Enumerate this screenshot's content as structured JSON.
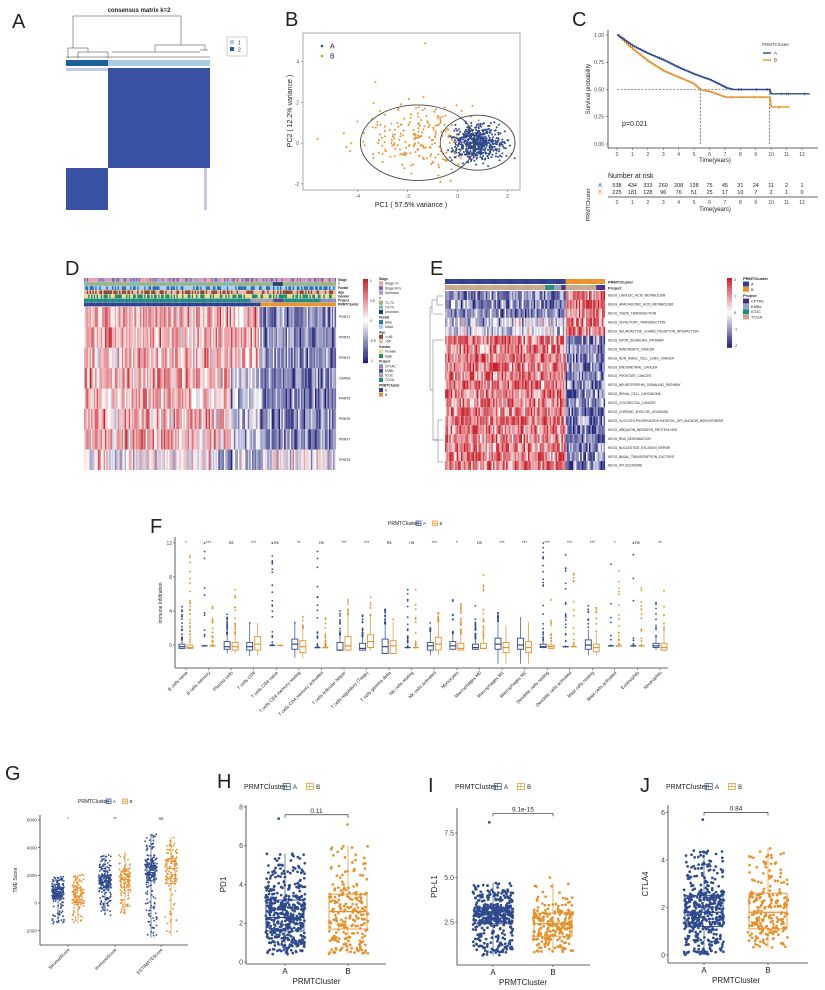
{
  "colors": {
    "cluster_A": "#2f4a8c",
    "cluster_B": "#e3922f",
    "heat_high": "#c8202c",
    "heat_low": "#1c1f78",
    "consensus": "#3a52a3",
    "consensus_light": "#a9cde3",
    "consensus_dark": "#1f5f99"
  },
  "chart_data": [
    {
      "panel": "A",
      "type": "heatmap",
      "title": "consensus matrix k=2",
      "legend": [
        "1",
        "2"
      ]
    },
    {
      "panel": "B",
      "type": "scatter",
      "xlabel": "PC1 ( 57.5% variance )",
      "ylabel": "PC2 ( 12.2% variance )",
      "xticks": [
        "-4",
        "-2",
        "0",
        "2"
      ],
      "yticks": [
        "-2",
        "0",
        "2",
        "4"
      ],
      "xlim": [
        -6.2,
        2.5
      ],
      "ylim": [
        -2.3,
        5.4
      ],
      "legend": [
        "A",
        "B"
      ],
      "legend_placement": "top-left",
      "ellipses": true
    },
    {
      "panel": "C",
      "type": "line",
      "xlabel": "Time(years)",
      "ylabel": "Survival probability",
      "xticks": [
        "0",
        "1",
        "2",
        "3",
        "4",
        "5",
        "6",
        "7",
        "8",
        "9",
        "10",
        "11",
        "12"
      ],
      "yticks": [
        "0.00",
        "0.25",
        "0.50",
        "0.75",
        "1.00"
      ],
      "legend_title": "PRMTCluster",
      "legend": [
        "A",
        "B"
      ],
      "legend_placement": "top-right",
      "pvalue": "p=0.021",
      "series": [
        {
          "name": "A",
          "points": [
            [
              0,
              1
            ],
            [
              1,
              0.9
            ],
            [
              2,
              0.83
            ],
            [
              3,
              0.77
            ],
            [
              4,
              0.7
            ],
            [
              5,
              0.64
            ],
            [
              6,
              0.59
            ],
            [
              7,
              0.52
            ],
            [
              7.5,
              0.5
            ],
            [
              9.9,
              0.5
            ],
            [
              10,
              0.46
            ],
            [
              12.5,
              0.46
            ]
          ]
        },
        {
          "name": "B",
          "points": [
            [
              0,
              1
            ],
            [
              1,
              0.87
            ],
            [
              2,
              0.76
            ],
            [
              3,
              0.67
            ],
            [
              4,
              0.61
            ],
            [
              5,
              0.55
            ],
            [
              5.4,
              0.5
            ],
            [
              6,
              0.48
            ],
            [
              7,
              0.43
            ],
            [
              9.9,
              0.43
            ],
            [
              10,
              0.34
            ],
            [
              11.2,
              0.34
            ]
          ]
        }
      ],
      "median_survival": [
        5.4,
        9.9
      ],
      "risk_table": {
        "title": "Number at risk",
        "ylabel": "PRMTCluster",
        "xlabel": "Time(years)",
        "rows": [
          {
            "name": "A",
            "values": [
              "538",
              "434",
              "333",
              "269",
              "208",
              "138",
              "75",
              "45",
              "31",
              "24",
              "11",
              "2",
              "1"
            ]
          },
          {
            "name": "B",
            "values": [
              "225",
              "181",
              "128",
              "96",
              "76",
              "51",
              "25",
              "17",
              "10",
              "7",
              "2",
              "1",
              "0"
            ]
          }
        ]
      }
    },
    {
      "panel": "D",
      "type": "heatmap",
      "annotation_tracks": [
        "Stage",
        "T",
        "Fustat",
        "Age",
        "Gender",
        "Project",
        "PRMTCluster"
      ],
      "rows": [
        "PRMT1",
        "PRMT2",
        "PRMT3",
        "CARM1",
        "PRMT5",
        "PRMT6",
        "PRMT7",
        "PRMT8"
      ],
      "color_scale": [
        "1",
        "0.5",
        "0",
        "-0.5",
        "-1"
      ],
      "legend": [
        {
          "title": "Stage",
          "items": [
            "Stage I-II",
            "Stage III-IV",
            "Unknown"
          ],
          "colors": [
            "#e8a0a8",
            "#7a6bb0",
            "#a99bd0"
          ]
        },
        {
          "title": "T",
          "items": [
            "T1-T2",
            "T3-T4",
            "Unknown"
          ],
          "colors": [
            "#9fb07a",
            "#7fb8b0",
            "#1f3b6b"
          ]
        },
        {
          "title": "Fustat",
          "items": [
            "Alive",
            "Dead"
          ],
          "colors": [
            "#2d6fb3",
            "#a8cde8"
          ]
        },
        {
          "title": "Age",
          "items": [
            "<=65",
            ">65"
          ],
          "colors": [
            "#8a4a2e",
            "#e8b8a0"
          ]
        },
        {
          "title": "Gender",
          "items": [
            "Female",
            "Male"
          ],
          "colors": [
            "#f0d890",
            "#1f8a70"
          ]
        },
        {
          "title": "Project",
          "items": [
            "CPTAC",
            "EMBL",
            "ICGC",
            "TCGA"
          ],
          "colors": [
            "#7e8fc4",
            "#54408f",
            "#a0a0a0",
            "#1f8a80"
          ]
        },
        {
          "title": "PRMTCluster",
          "items": [
            "A",
            "B"
          ],
          "colors": [
            "#2c3e8c",
            "#e8922a"
          ]
        }
      ]
    },
    {
      "panel": "E",
      "type": "heatmap",
      "annotation_tracks": [
        "PRMTCluster",
        "Project"
      ],
      "rows": [
        "KEGG_LINOLEIC_ACID_METABOLISM",
        "KEGG_ARACHIDONIC_ACID_METABOLISM",
        "KEGG_TASTE_TRANSDUCTION",
        "KEGG_OLFACTORY_TRANSDUCTION",
        "KEGG_NEUROACTIVE_LIGAND_RECEPTOR_INTERACTION",
        "KEGG_MTOR_SIGNALING_PATHWAY",
        "KEGG_PANCREATIC_CANCER",
        "KEGG_NON_SMALL_CELL_LUNG_CANCER",
        "KEGG_ENDOMETRIAL_CANCER",
        "KEGG_PROSTATE_CANCER",
        "KEGG_NEUROTROPHIN_SIGNALING_PATHWAY",
        "KEGG_RENAL_CELL_CARCINOMA",
        "KEGG_COLORECTAL_CANCER",
        "KEGG_CHRONIC_MYELOID_LEUKEMIA",
        "KEGG_GLYCOSYLPHOSPHATIDYLINOSITOL_GPI_ANCHOR_BIOSYNTHESIS",
        "KEGG_UBIQUITIN_MEDIATED_PROTEOLYSIS",
        "KEGG_RNA_DEGRADATION",
        "KEGG_NUCLEOTIDE_EXCISION_REPAIR",
        "KEGG_BASAL_TRANSCRIPTION_FACTORS",
        "KEGG_SPLICEOSOME"
      ],
      "color_scale": [
        "2",
        "1",
        "0",
        "-1",
        "-2"
      ],
      "legend": [
        {
          "title": "PRMTCluster",
          "items": [
            "A",
            "B"
          ],
          "colors": [
            "#2c3e8c",
            "#e8922a"
          ]
        },
        {
          "title": "Project",
          "items": [
            "CPTAC",
            "EMBL",
            "ICGC",
            "TCGA"
          ],
          "colors": [
            "#4a2a7a",
            "#9aa0c8",
            "#1f8a80",
            "#c8a88a"
          ]
        }
      ]
    },
    {
      "panel": "F",
      "type": "box",
      "ylabel": "Immune Infiltration",
      "yticks": [
        "0",
        "4",
        "8",
        "12"
      ],
      "ylim": [
        -2.7,
        12.5
      ],
      "legend_title": "PRMTCluster",
      "legend": [
        "A",
        "B"
      ],
      "legend_placement": "top",
      "categories": [
        "B cells naive",
        "B cells memory",
        "Plasma cells",
        "T cells CD8",
        "T cells CD4 naive",
        "T cells CD4 memory resting",
        "T cells CD4 memory activated",
        "T cells follicular helper",
        "T cells regulatory (Tregs)",
        "T cells gamma delta",
        "NK cells resting",
        "NK cells activated",
        "Monocytes",
        "Macrophages M0",
        "Macrophages M1",
        "Macrophages M2",
        "Dendritic cells resting",
        "Dendritic cells activated",
        "Mast cells resting",
        "Mast cells activated",
        "Eosinophils",
        "Neutrophils"
      ],
      "significance": [
        "*",
        "***",
        "ns",
        "***",
        "ns",
        "**",
        "ns",
        "***",
        "***",
        "ns",
        "ns",
        "***",
        "*",
        "ns",
        "***",
        "***",
        "***",
        "***",
        "***",
        "*",
        "ns",
        "**"
      ],
      "series": [
        {
          "name": "A",
          "box": [
            [
              -0.5,
              -0.4,
              -0.2,
              0.1,
              0.6
            ],
            [
              -0.1,
              -0.1,
              -0.1,
              -0.1,
              -0.1
            ],
            [
              -1,
              -0.5,
              -0.2,
              0.4,
              1.3
            ],
            [
              -1.3,
              -0.6,
              -0.2,
              0.3,
              2.5
            ],
            [
              -0.05,
              -0.05,
              -0.05,
              -0.05,
              -0.05
            ],
            [
              -1.5,
              -0.5,
              0.1,
              0.7,
              2.5
            ],
            [
              -0.3,
              -0.3,
              -0.3,
              -0.3,
              -0.3
            ],
            [
              -0.7,
              -0.6,
              -0.6,
              0.3,
              1.2
            ],
            [
              -0.7,
              -0.6,
              -0.4,
              0.2,
              1
            ],
            [
              -1,
              -1,
              -0.2,
              0.7,
              2.5
            ],
            [
              -0.3,
              -0.3,
              -0.3,
              -0.3,
              -0.3
            ],
            [
              -1.2,
              -0.6,
              -0.1,
              0.3,
              1.6
            ],
            [
              -0.6,
              -0.5,
              -0.1,
              0.4,
              1.3
            ],
            [
              -0.6,
              -0.5,
              -0.3,
              0.1,
              0.7
            ],
            [
              -2.2,
              -0.5,
              0.1,
              0.8,
              2.8
            ],
            [
              -2.2,
              -0.5,
              0,
              0.8,
              3.3
            ],
            [
              -0.4,
              -0.3,
              -0.2,
              0.1,
              0.5
            ],
            [
              -0.2,
              -0.2,
              -0.2,
              -0.2,
              -0.2
            ],
            [
              -1.2,
              -0.5,
              0,
              0.6,
              1.8
            ],
            [
              -0.1,
              -0.1,
              -0.1,
              -0.1,
              -0.1
            ],
            [
              -0.1,
              -0.1,
              -0.1,
              -0.1,
              -0.1
            ],
            [
              -0.6,
              -0.3,
              -0.1,
              0.2,
              1
            ]
          ],
          "max_outlier": [
            4.5,
            12,
            3.6,
            2.6,
            12,
            2.6,
            11,
            4,
            3.5,
            4.2,
            6.5,
            2.6,
            5.3,
            4.6,
            3.8,
            3.3,
            12,
            10.6,
            4.6,
            9.5,
            12,
            5
          ]
        },
        {
          "name": "B",
          "box": [
            [
              -0.5,
              -0.4,
              -0.3,
              0,
              0.4
            ],
            [
              -0.1,
              -0.1,
              -0.1,
              -0.1,
              -0.1
            ],
            [
              -1,
              -0.6,
              -0.2,
              0.3,
              1.3
            ],
            [
              -1.2,
              -0.6,
              0.1,
              1,
              2.6
            ],
            [
              -0.05,
              -0.05,
              -0.05,
              -0.05,
              -0.05
            ],
            [
              -1.5,
              -0.9,
              -0.2,
              0.5,
              2
            ],
            [
              -0.3,
              -0.3,
              -0.3,
              -0.3,
              -0.3
            ],
            [
              -0.7,
              -0.6,
              -0.1,
              1,
              3.6
            ],
            [
              -0.6,
              -0.3,
              0.4,
              1.2,
              3.5
            ],
            [
              -1,
              -1,
              -0.1,
              0.5,
              2.7
            ],
            [
              -0.3,
              -0.3,
              -0.3,
              -0.3,
              -0.3
            ],
            [
              -1.2,
              -0.6,
              0.1,
              0.9,
              2.8
            ],
            [
              -0.6,
              -0.6,
              -0.4,
              0.2,
              1.2
            ],
            [
              -0.5,
              -0.4,
              -0.4,
              0.2,
              0.8
            ],
            [
              -2.2,
              -0.9,
              -0.3,
              0.3,
              2.3
            ],
            [
              -2.2,
              -0.9,
              -0.3,
              0.4,
              2.7
            ],
            [
              -0.4,
              -0.4,
              -0.2,
              0,
              0.5
            ],
            [
              -0.2,
              -0.2,
              -0.2,
              -0.2,
              -0.2
            ],
            [
              -1.2,
              -0.8,
              -0.3,
              0.1,
              1.4
            ],
            [
              -0.1,
              -0.1,
              -0.1,
              -0.1,
              -0.1
            ],
            [
              -0.1,
              -0.1,
              -0.1,
              -0.1,
              -0.1
            ],
            [
              -0.7,
              -0.6,
              -0.3,
              0.2,
              1.8
            ]
          ],
          "max_outlier": [
            10.5,
            4.5,
            6.5,
            2.6,
            -0.05,
            3.3,
            3.2,
            5.3,
            5.6,
            3,
            6.5,
            3.8,
            4.8,
            8.2,
            2.3,
            2.7,
            5.3,
            8.4,
            4.4,
            8.7,
            6.7,
            6.4
          ]
        }
      ]
    },
    {
      "panel": "G",
      "type": "box",
      "ylabel": "TME Score",
      "yticks": [
        "-2000",
        "0",
        "2000",
        "4000",
        "6000"
      ],
      "ylim": [
        -2930,
        6360
      ],
      "legend_title": "PRMTCluster",
      "legend": [
        "A",
        "B"
      ],
      "categories": [
        "StromalScore",
        "ImmuneScore",
        "ESTIMATEScore"
      ],
      "significance": [
        "*",
        "**",
        "ns"
      ],
      "series": [
        {
          "name": "A",
          "box": [
            [
              -1500,
              300,
              700,
              1000,
              1900
            ],
            [
              -900,
              1000,
              1500,
              2000,
              3500
            ],
            [
              -2500,
              1600,
              2200,
              2900,
              5000
            ]
          ]
        },
        {
          "name": "B",
          "box": [
            [
              -1500,
              0,
              500,
              1000,
              2100
            ],
            [
              -800,
              1100,
              1700,
              2300,
              3700
            ],
            [
              -2400,
              1400,
              2500,
              3200,
              4800
            ]
          ]
        }
      ]
    },
    {
      "panel": "H",
      "type": "box",
      "ylabel": "PD1",
      "xlabel": "PRMTCluster",
      "yticks": [
        "0",
        "2",
        "4",
        "6",
        "8"
      ],
      "ylim": [
        0,
        8
      ],
      "legend_title": "PRMTCluster",
      "legend": [
        "A",
        "B"
      ],
      "categories": [
        "A",
        "B"
      ],
      "pvalue": "0.11",
      "series": [
        {
          "name": "A",
          "box": [
            0.4,
            1.6,
            2.3,
            3.2,
            5.6
          ],
          "max_outlier": 7.4
        },
        {
          "name": "B",
          "box": [
            0.4,
            1.7,
            2.6,
            3.5,
            6
          ],
          "max_outlier": 7.1
        }
      ]
    },
    {
      "panel": "I",
      "type": "box",
      "ylabel": "PD-L1",
      "xlabel": "PRMTCluster",
      "yticks": [
        "2.5",
        "5.0",
        "7.5"
      ],
      "ylim": [
        0.25,
        9
      ],
      "legend_title": "PRMTCluster",
      "legend": [
        "A",
        "B"
      ],
      "categories": [
        "A",
        "B"
      ],
      "pvalue": "9.1e-15",
      "series": [
        {
          "name": "A",
          "box": [
            0.6,
            2.4,
            2.9,
            3.3,
            4.7
          ],
          "max_outlier": 8.1
        },
        {
          "name": "B",
          "box": [
            0.8,
            1.7,
            2.4,
            3.0,
            4.7
          ],
          "max_outlier": 5
        }
      ]
    },
    {
      "panel": "J",
      "type": "box",
      "ylabel": "CTLA4",
      "xlabel": "PRMTCluster",
      "yticks": [
        "0",
        "2",
        "4",
        "6"
      ],
      "ylim": [
        -0.3,
        6.2
      ],
      "legend_title": "PRMTCluster",
      "legend": [
        "A",
        "B"
      ],
      "categories": [
        "A",
        "B"
      ],
      "pvalue": "0.84",
      "series": [
        {
          "name": "A",
          "box": [
            0,
            1.2,
            1.8,
            2.5,
            4.4
          ],
          "max_outlier": 5.7
        },
        {
          "name": "B",
          "box": [
            0.3,
            1.1,
            1.8,
            2.6,
            4.5
          ],
          "max_outlier": 4.5
        }
      ]
    }
  ]
}
